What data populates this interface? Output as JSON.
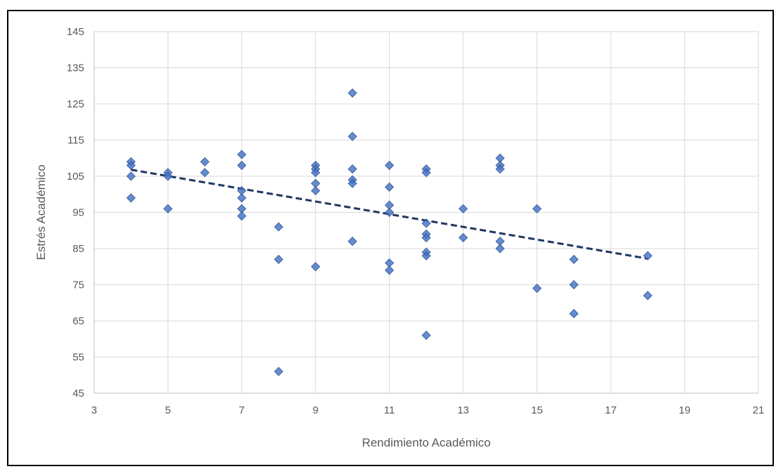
{
  "chart_data": {
    "type": "scatter",
    "title": "",
    "xlabel": "Rendimiento Académico",
    "ylabel": "Estrés Académico",
    "xlim": [
      3,
      21
    ],
    "ylim": [
      45,
      145
    ],
    "xticks": [
      3,
      5,
      7,
      9,
      11,
      13,
      15,
      17,
      19,
      21
    ],
    "yticks": [
      45,
      55,
      65,
      75,
      85,
      95,
      105,
      115,
      125,
      135,
      145
    ],
    "grid": true,
    "marker": "diamond",
    "marker_color": "#4472C4",
    "trendline": {
      "type": "linear",
      "style": "dashed",
      "color": "#203864",
      "x": [
        4,
        18
      ],
      "y": [
        106.8,
        82.2
      ]
    },
    "points": [
      {
        "x": 4,
        "y": 109
      },
      {
        "x": 4,
        "y": 108
      },
      {
        "x": 4,
        "y": 105
      },
      {
        "x": 4,
        "y": 99
      },
      {
        "x": 5,
        "y": 106
      },
      {
        "x": 5,
        "y": 105
      },
      {
        "x": 5,
        "y": 96
      },
      {
        "x": 6,
        "y": 109
      },
      {
        "x": 6,
        "y": 106
      },
      {
        "x": 7,
        "y": 111
      },
      {
        "x": 7,
        "y": 108
      },
      {
        "x": 7,
        "y": 101
      },
      {
        "x": 7,
        "y": 99
      },
      {
        "x": 7,
        "y": 96
      },
      {
        "x": 7,
        "y": 94
      },
      {
        "x": 8,
        "y": 91
      },
      {
        "x": 8,
        "y": 82
      },
      {
        "x": 8,
        "y": 51
      },
      {
        "x": 9,
        "y": 108
      },
      {
        "x": 9,
        "y": 107
      },
      {
        "x": 9,
        "y": 106
      },
      {
        "x": 9,
        "y": 103
      },
      {
        "x": 9,
        "y": 101
      },
      {
        "x": 9,
        "y": 80
      },
      {
        "x": 10,
        "y": 128
      },
      {
        "x": 10,
        "y": 116
      },
      {
        "x": 10,
        "y": 107
      },
      {
        "x": 10,
        "y": 104
      },
      {
        "x": 10,
        "y": 103
      },
      {
        "x": 10,
        "y": 87
      },
      {
        "x": 11,
        "y": 108
      },
      {
        "x": 11,
        "y": 102
      },
      {
        "x": 11,
        "y": 97
      },
      {
        "x": 11,
        "y": 95
      },
      {
        "x": 11,
        "y": 81
      },
      {
        "x": 11,
        "y": 79
      },
      {
        "x": 12,
        "y": 107
      },
      {
        "x": 12,
        "y": 106
      },
      {
        "x": 12,
        "y": 92
      },
      {
        "x": 12,
        "y": 89
      },
      {
        "x": 12,
        "y": 88
      },
      {
        "x": 12,
        "y": 84
      },
      {
        "x": 12,
        "y": 83
      },
      {
        "x": 12,
        "y": 61
      },
      {
        "x": 13,
        "y": 96
      },
      {
        "x": 13,
        "y": 88
      },
      {
        "x": 14,
        "y": 110
      },
      {
        "x": 14,
        "y": 108
      },
      {
        "x": 14,
        "y": 107
      },
      {
        "x": 14,
        "y": 87
      },
      {
        "x": 14,
        "y": 85
      },
      {
        "x": 15,
        "y": 96
      },
      {
        "x": 15,
        "y": 74
      },
      {
        "x": 16,
        "y": 82
      },
      {
        "x": 16,
        "y": 75
      },
      {
        "x": 16,
        "y": 67
      },
      {
        "x": 18,
        "y": 83
      },
      {
        "x": 18,
        "y": 72
      }
    ]
  }
}
